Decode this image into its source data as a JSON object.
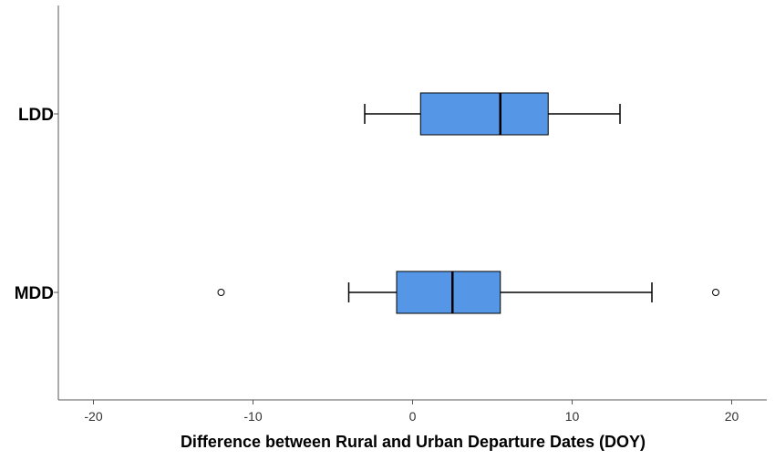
{
  "chart_data": {
    "type": "boxplot",
    "orientation": "horizontal",
    "xlabel": "Difference between Rural and Urban Departure Dates (DOY)",
    "ylabel": "",
    "xlim": [
      -22.2,
      22.2
    ],
    "x_ticks": [
      -20,
      -10,
      0,
      10,
      20
    ],
    "grid": false,
    "colors": {
      "box_fill": "#5597e6",
      "stroke": "#000000",
      "axis": "#555555"
    },
    "categories": [
      "LDD",
      "MDD"
    ],
    "series": [
      {
        "category": "LDD",
        "whisker_low": -3,
        "q1": 0.5,
        "median": 5.5,
        "q3": 8.5,
        "whisker_high": 13,
        "outliers": []
      },
      {
        "category": "MDD",
        "whisker_low": -4,
        "q1": -1,
        "median": 2.5,
        "q3": 5.5,
        "whisker_high": 15,
        "outliers": [
          -12,
          19
        ]
      }
    ]
  }
}
